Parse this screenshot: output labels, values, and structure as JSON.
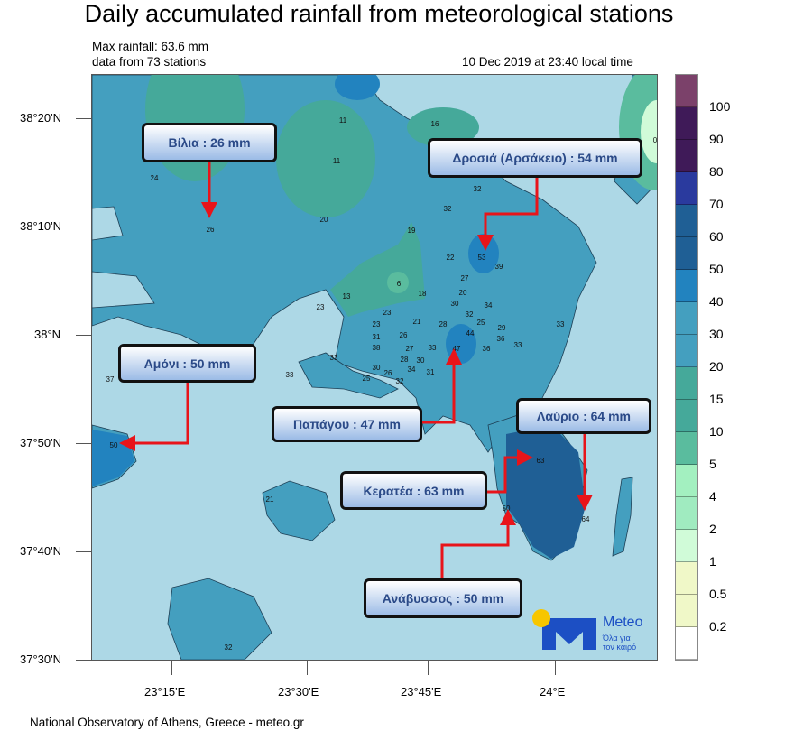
{
  "title": "Daily accumulated rainfall from meteorological stations",
  "max_rainfall": "Max rainfall: 63.6 mm",
  "stations_count": "data from 73 stations",
  "timestamp": "10 Dec 2019 at 23:40 local time",
  "lat_ticks": [
    "38°20'N",
    "38°10'N",
    "38°N",
    "37°50'N",
    "37°40'N",
    "37°30'N"
  ],
  "lon_ticks": [
    "23°15'E",
    "23°30'E",
    "23°45'E",
    "24°E"
  ],
  "station_values": [
    "11",
    "16",
    "11",
    "24",
    "26",
    "20",
    "19",
    "32",
    "32",
    "22",
    "53",
    "39",
    "6",
    "18",
    "13",
    "27",
    "20",
    "23",
    "30",
    "32",
    "34",
    "23",
    "25",
    "29",
    "23",
    "21",
    "28",
    "44",
    "36",
    "26",
    "31",
    "38",
    "33",
    "27",
    "33",
    "47",
    "36",
    "33",
    "28",
    "30",
    "34",
    "31",
    "30",
    "26",
    "25",
    "32",
    "33",
    "33",
    "37",
    "50",
    "63",
    "21",
    "50",
    "64",
    "32",
    "0"
  ],
  "callouts": {
    "vilia": "Βίλια : 26 mm",
    "drosia": "Δροσιά (Αρσάκειο) : 54 mm",
    "amoni": "Αμόνι : 50 mm",
    "papagou": "Παπάγου : 47 mm",
    "lavrio": "Λαύριο : 64 mm",
    "keratea": "Κερατέα : 63 mm",
    "anavyssos": "Ανάβυσσος : 50 mm"
  },
  "colorbar": {
    "labels": [
      "100",
      "90",
      "80",
      "70",
      "60",
      "50",
      "40",
      "30",
      "20",
      "15",
      "10",
      "5",
      "4",
      "2",
      "1",
      "0.5",
      "0.2"
    ],
    "colors": [
      "#7b416a",
      "#3f1a58",
      "#3f1a58",
      "#2a3a9e",
      "#1f5f95",
      "#1f5f95",
      "#2283bf",
      "#449fbf",
      "#449fbf",
      "#45a99a",
      "#45a99a",
      "#5abc9e",
      "#a3f0c0",
      "#a0ebc0",
      "#d0fbd8",
      "#f0f8c8",
      "#f0f8c8",
      "#ffffff"
    ]
  },
  "logo": {
    "brand": "Meteo",
    "tagline1": "Όλα για",
    "tagline2": "τον καιρό"
  },
  "footer": "National Observatory of Athens, Greece - meteo.gr"
}
